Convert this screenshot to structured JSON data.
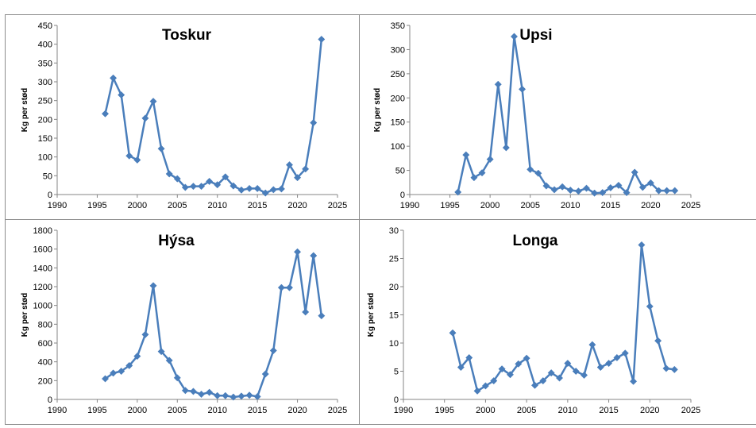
{
  "colors": {
    "series": "#4a7ebb",
    "marker": "#4a7ebb"
  },
  "chart_data": [
    {
      "type": "line",
      "title": "Toskur",
      "xlabel": "",
      "ylabel": "Kg per stød",
      "xlim": [
        1990,
        2025
      ],
      "ylim": [
        0,
        450
      ],
      "xticks": [
        1990,
        1995,
        2000,
        2005,
        2010,
        2015,
        2020,
        2025
      ],
      "yticks": [
        0,
        50,
        100,
        150,
        200,
        250,
        300,
        350,
        400,
        450
      ],
      "x": [
        1996,
        1997,
        1998,
        1999,
        2000,
        2001,
        2002,
        2003,
        2004,
        2005,
        2006,
        2007,
        2008,
        2009,
        2010,
        2011,
        2012,
        2013,
        2014,
        2015,
        2016,
        2017,
        2018,
        2019,
        2020,
        2021,
        2022,
        2023
      ],
      "values": [
        215,
        310,
        265,
        103,
        92,
        203,
        248,
        122,
        55,
        42,
        19,
        22,
        22,
        35,
        26,
        47,
        23,
        12,
        16,
        16,
        4,
        13,
        15,
        79,
        45,
        68,
        191,
        413
      ]
    },
    {
      "type": "line",
      "title": "Upsi",
      "xlabel": "",
      "ylabel": "Kg per stød",
      "xlim": [
        1990,
        2025
      ],
      "ylim": [
        0,
        350
      ],
      "xticks": [
        1990,
        1995,
        2000,
        2005,
        2010,
        2015,
        2020,
        2025
      ],
      "yticks": [
        0,
        50,
        100,
        150,
        200,
        250,
        300,
        350
      ],
      "x": [
        1996,
        1997,
        1998,
        1999,
        2000,
        2001,
        2002,
        2003,
        2004,
        2005,
        2006,
        2007,
        2008,
        2009,
        2010,
        2011,
        2012,
        2013,
        2014,
        2015,
        2016,
        2017,
        2018,
        2019,
        2020,
        2021,
        2022,
        2023
      ],
      "values": [
        5,
        82,
        35,
        45,
        73,
        228,
        97,
        327,
        218,
        52,
        44,
        18,
        10,
        16,
        9,
        7,
        13,
        3,
        4,
        14,
        19,
        4,
        46,
        15,
        24,
        8,
        8,
        8
      ]
    },
    {
      "type": "line",
      "title": "Hýsa",
      "xlabel": "",
      "ylabel": "Kg per stød",
      "xlim": [
        1990,
        2025
      ],
      "ylim": [
        0,
        1800
      ],
      "xticks": [
        1990,
        1995,
        2000,
        2005,
        2010,
        2015,
        2020,
        2025
      ],
      "yticks": [
        0,
        200,
        400,
        600,
        800,
        1000,
        1200,
        1400,
        1600,
        1800
      ],
      "x": [
        1996,
        1997,
        1998,
        1999,
        2000,
        2001,
        2002,
        2003,
        2004,
        2005,
        2006,
        2007,
        2008,
        2009,
        2010,
        2011,
        2012,
        2013,
        2014,
        2015,
        2016,
        2017,
        2018,
        2019,
        2020,
        2021,
        2022,
        2023
      ],
      "values": [
        220,
        280,
        300,
        360,
        460,
        690,
        1210,
        510,
        415,
        230,
        95,
        85,
        55,
        75,
        40,
        40,
        25,
        35,
        45,
        30,
        270,
        520,
        1190,
        1190,
        1570,
        930,
        1530,
        890
      ]
    },
    {
      "type": "line",
      "title": "Longa",
      "xlabel": "",
      "ylabel": "Kg per stød",
      "xlim": [
        1990,
        2025
      ],
      "ylim": [
        0,
        30
      ],
      "xticks": [
        1990,
        1995,
        2000,
        2005,
        2010,
        2015,
        2020,
        2025
      ],
      "yticks": [
        0,
        5,
        10,
        15,
        20,
        25,
        30
      ],
      "x": [
        1996,
        1997,
        1998,
        1999,
        2000,
        2001,
        2002,
        2003,
        2004,
        2005,
        2006,
        2007,
        2008,
        2009,
        2010,
        2011,
        2012,
        2013,
        2014,
        2015,
        2016,
        2017,
        2018,
        2019,
        2020,
        2021,
        2022,
        2023
      ],
      "values": [
        11.8,
        5.7,
        7.4,
        1.5,
        2.4,
        3.3,
        5.4,
        4.4,
        6.3,
        7.3,
        2.5,
        3.3,
        4.7,
        3.8,
        6.4,
        5.0,
        4.3,
        9.7,
        5.7,
        6.4,
        7.4,
        8.2,
        3.2,
        27.4,
        16.5,
        10.4,
        5.5,
        5.3
      ]
    }
  ]
}
